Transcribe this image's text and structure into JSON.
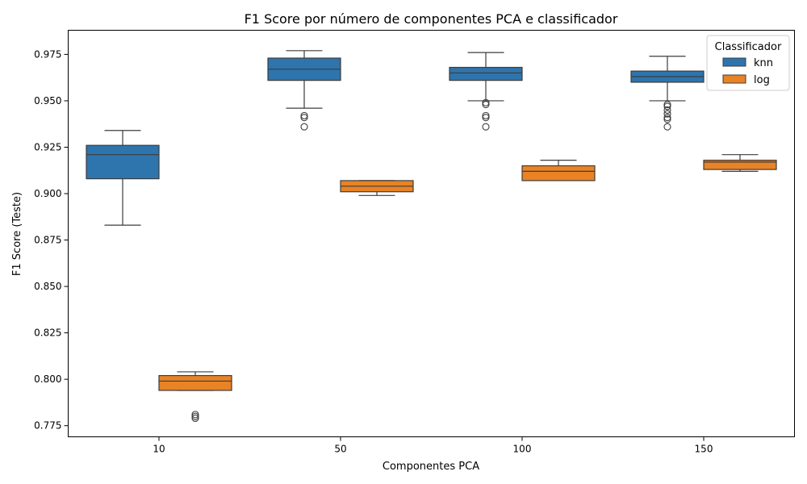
{
  "chart_data": {
    "type": "box",
    "title": "F1 Score por número de componentes PCA e classificador",
    "xlabel": "Componentes PCA",
    "ylabel": "F1 Score (Teste)",
    "categories": [
      "10",
      "50",
      "100",
      "150"
    ],
    "ylim": [
      0.769,
      0.988
    ],
    "yticks": [
      "0.775",
      "0.800",
      "0.825",
      "0.850",
      "0.875",
      "0.900",
      "0.925",
      "0.950",
      "0.975"
    ],
    "grid": false,
    "legend": {
      "title": "Classificador",
      "position": "top-right"
    },
    "series": [
      {
        "name": "knn",
        "color": "#2e74ad",
        "boxes": [
          {
            "whisker_low": 0.883,
            "q1": 0.908,
            "median": 0.921,
            "q3": 0.926,
            "whisker_high": 0.934,
            "outliers": []
          },
          {
            "whisker_low": 0.946,
            "q1": 0.961,
            "median": 0.967,
            "q3": 0.973,
            "whisker_high": 0.977,
            "outliers": [
              0.942,
              0.941,
              0.936
            ]
          },
          {
            "whisker_low": 0.95,
            "q1": 0.961,
            "median": 0.965,
            "q3": 0.968,
            "whisker_high": 0.976,
            "outliers": [
              0.949,
              0.948,
              0.942,
              0.941,
              0.936
            ]
          },
          {
            "whisker_low": 0.95,
            "q1": 0.96,
            "median": 0.963,
            "q3": 0.966,
            "whisker_high": 0.974,
            "outliers": [
              0.948,
              0.947,
              0.945,
              0.943,
              0.941,
              0.94,
              0.936
            ]
          }
        ]
      },
      {
        "name": "log",
        "color": "#e88326",
        "boxes": [
          {
            "whisker_low": 0.794,
            "q1": 0.794,
            "median": 0.799,
            "q3": 0.802,
            "whisker_high": 0.804,
            "outliers": [
              0.781,
              0.78,
              0.779
            ]
          },
          {
            "whisker_low": 0.899,
            "q1": 0.901,
            "median": 0.904,
            "q3": 0.907,
            "whisker_high": 0.907,
            "outliers": []
          },
          {
            "whisker_low": 0.907,
            "q1": 0.907,
            "median": 0.912,
            "q3": 0.915,
            "whisker_high": 0.918,
            "outliers": []
          },
          {
            "whisker_low": 0.912,
            "q1": 0.913,
            "median": 0.917,
            "q3": 0.918,
            "whisker_high": 0.921,
            "outliers": []
          }
        ]
      }
    ]
  }
}
